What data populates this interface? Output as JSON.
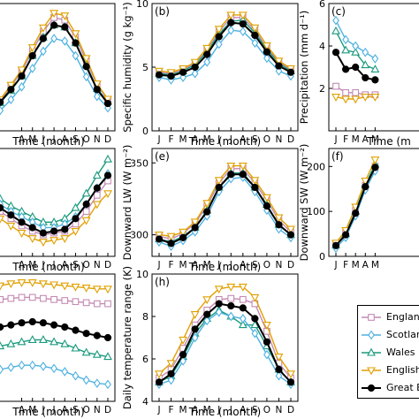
{
  "months": [
    "J",
    "F",
    "M",
    "A",
    "M",
    "J",
    "J",
    "A",
    "S",
    "O",
    "N",
    "D"
  ],
  "chart_data": [
    {
      "type": "line",
      "panel": "",
      "ylabel": "",
      "xlabel": "Time (month)",
      "ylim": [
        0,
        20
      ],
      "yticks": [],
      "visible_tick_labels": [
        "A",
        "M",
        "J",
        "J",
        "A",
        "S",
        "O",
        "N",
        "D"
      ],
      "series": [
        {
          "name": "England",
          "values": [
            4.3,
            4.8,
            7.0,
            9.3,
            12.6,
            15.6,
            17.8,
            17.4,
            14.7,
            11.0,
            7.2,
            4.9
          ]
        },
        {
          "name": "Scotland",
          "values": [
            3.0,
            3.2,
            4.9,
            6.9,
            9.8,
            12.5,
            14.5,
            14.1,
            11.8,
            8.5,
            5.4,
            3.6
          ]
        },
        {
          "name": "Wales",
          "values": [
            4.0,
            4.4,
            6.3,
            8.6,
            11.8,
            14.7,
            16.6,
            16.3,
            13.8,
            10.4,
            6.6,
            4.6
          ]
        },
        {
          "name": "English Channel",
          "values": [
            4.4,
            4.9,
            7.2,
            9.6,
            13.1,
            16.2,
            18.5,
            18.1,
            15.3,
            11.4,
            7.4,
            5.0
          ]
        },
        {
          "name": "Great Britain",
          "values": [
            4.0,
            4.5,
            6.5,
            8.6,
            11.8,
            14.5,
            16.6,
            16.3,
            13.8,
            10.1,
            6.5,
            4.3
          ]
        }
      ]
    },
    {
      "type": "line",
      "panel": "(b)",
      "ylabel": "Specific humidity (g kg⁻¹)",
      "xlabel": "Time (month)",
      "ylim": [
        0,
        10
      ],
      "yticks": [
        0,
        5,
        10
      ],
      "visible_tick_labels": [
        "J",
        "F",
        "M",
        "A",
        "M",
        "J",
        "J",
        "A",
        "S",
        "O",
        "N",
        "D"
      ],
      "series": [
        {
          "name": "England",
          "values": [
            4.6,
            4.5,
            4.8,
            5.3,
            6.3,
            7.8,
            8.9,
            8.9,
            7.9,
            6.5,
            5.4,
            4.8
          ]
        },
        {
          "name": "Scotland",
          "values": [
            4.2,
            4.0,
            4.2,
            4.5,
            5.4,
            6.8,
            7.9,
            7.8,
            6.9,
            5.7,
            4.7,
            4.3
          ]
        },
        {
          "name": "Wales",
          "values": [
            4.5,
            4.4,
            4.7,
            5.2,
            6.2,
            7.6,
            8.6,
            8.7,
            7.7,
            6.4,
            5.3,
            4.7
          ]
        },
        {
          "name": "English Channel",
          "values": [
            4.7,
            4.6,
            4.9,
            5.4,
            6.5,
            8.0,
            9.1,
            9.1,
            8.1,
            6.7,
            5.5,
            4.9
          ]
        },
        {
          "name": "Great Britain",
          "values": [
            4.4,
            4.3,
            4.6,
            5.0,
            6.0,
            7.4,
            8.5,
            8.4,
            7.5,
            6.2,
            5.1,
            4.6
          ]
        }
      ]
    },
    {
      "type": "line",
      "panel": "(c)",
      "ylabel": "Precipitation (mm d⁻¹)",
      "xlabel": "Time (m",
      "ylim": [
        0,
        6
      ],
      "yticks": [
        2,
        4,
        6
      ],
      "visible_tick_labels": [
        "J",
        "F",
        "M",
        "A",
        "M"
      ],
      "series": [
        {
          "name": "England",
          "values": [
            2.1,
            1.8,
            1.8,
            1.7,
            1.7
          ]
        },
        {
          "name": "Scotland",
          "values": [
            5.2,
            4.3,
            4.0,
            3.7,
            3.4
          ]
        },
        {
          "name": "Wales",
          "values": [
            4.7,
            3.8,
            3.7,
            3.1,
            2.9
          ]
        },
        {
          "name": "English Channel",
          "values": [
            1.6,
            1.5,
            1.5,
            1.6,
            1.6
          ]
        },
        {
          "name": "Great Britain",
          "values": [
            3.7,
            2.9,
            3.0,
            2.5,
            2.4
          ]
        }
      ]
    },
    {
      "type": "line",
      "panel": "",
      "ylabel": "",
      "xlabel": "Time (month)",
      "ylim": [
        280,
        340
      ],
      "yticks": [],
      "visible_tick_labels": [
        "A",
        "M",
        "J",
        "J",
        "A",
        "S",
        "O",
        "N",
        "D"
      ],
      "series": [
        {
          "name": "England",
          "values": [
            310,
            305,
            301,
            297,
            294,
            292,
            293,
            294,
            298,
            305,
            314,
            322
          ]
        },
        {
          "name": "Scotland",
          "values": [
            314,
            309,
            305,
            302,
            299,
            296,
            296,
            298,
            302,
            309,
            318,
            326
          ]
        },
        {
          "name": "Wales",
          "values": [
            317,
            312,
            308,
            305,
            302,
            299,
            299,
            301,
            307,
            315,
            325,
            334
          ]
        },
        {
          "name": "English Channel",
          "values": [
            306,
            301,
            297,
            293,
            290,
            288,
            289,
            290,
            294,
            300,
            309,
            315
          ]
        },
        {
          "name": "Great Britain",
          "values": [
            311,
            307,
            303,
            299,
            296,
            293,
            294,
            295,
            301,
            309,
            318,
            325
          ]
        }
      ]
    },
    {
      "type": "line",
      "panel": "(e)",
      "ylabel": "Downward LW (W m⁻²)",
      "xlabel": "Time (month)",
      "ylim": [
        285,
        360
      ],
      "yticks": [
        300,
        350
      ],
      "visible_tick_labels": [
        "J",
        "F",
        "M",
        "A",
        "M",
        "J",
        "J",
        "A",
        "S",
        "O",
        "N",
        "D"
      ],
      "series": [
        {
          "name": "England",
          "values": [
            299,
            297,
            301,
            308,
            320,
            336,
            346,
            346,
            336,
            324,
            310,
            302
          ]
        },
        {
          "name": "Scotland",
          "values": [
            295,
            292,
            296,
            302,
            313,
            330,
            339,
            340,
            330,
            317,
            304,
            298
          ]
        },
        {
          "name": "Wales",
          "values": [
            297,
            295,
            299,
            305,
            317,
            333,
            343,
            343,
            333,
            321,
            307,
            300
          ]
        },
        {
          "name": "English Channel",
          "values": [
            300,
            299,
            302,
            309,
            322,
            338,
            348,
            348,
            338,
            326,
            312,
            304
          ]
        },
        {
          "name": "Great Britain",
          "values": [
            297,
            294,
            298,
            305,
            316,
            333,
            342,
            342,
            333,
            320,
            307,
            300
          ]
        }
      ]
    },
    {
      "type": "line",
      "panel": "(f)",
      "ylabel": "Downward SW (W m⁻²)",
      "xlabel": "",
      "ylim": [
        0,
        240
      ],
      "yticks": [
        0,
        100,
        200
      ],
      "visible_tick_labels": [
        "J",
        "F",
        "M",
        "A",
        "M"
      ],
      "series": [
        {
          "name": "England",
          "values": [
            26,
            52,
            102,
            158,
            200
          ]
        },
        {
          "name": "Scotland",
          "values": [
            18,
            42,
            90,
            148,
            190
          ]
        },
        {
          "name": "Wales",
          "values": [
            25,
            50,
            100,
            160,
            205
          ]
        },
        {
          "name": "English Channel",
          "values": [
            30,
            58,
            110,
            168,
            215
          ]
        },
        {
          "name": "Great Britain",
          "values": [
            24,
            48,
            96,
            155,
            198
          ]
        }
      ]
    },
    {
      "type": "line",
      "panel": "",
      "ylabel": "",
      "xlabel": "Time (month)",
      "ylim": [
        4,
        10
      ],
      "yticks": [],
      "visible_tick_labels": [
        "A",
        "M",
        "J",
        "J",
        "A",
        "S",
        "O",
        "N",
        "D"
      ],
      "series": [
        {
          "name": "England",
          "values": [
            8.7,
            8.8,
            8.85,
            8.9,
            8.9,
            8.85,
            8.8,
            8.75,
            8.7,
            8.65,
            8.6,
            8.6
          ]
        },
        {
          "name": "Scotland",
          "values": [
            5.4,
            5.5,
            5.6,
            5.7,
            5.7,
            5.65,
            5.55,
            5.4,
            5.2,
            5.0,
            4.85,
            4.8
          ]
        },
        {
          "name": "Wales",
          "values": [
            6.5,
            6.6,
            6.7,
            6.8,
            6.9,
            6.9,
            6.8,
            6.7,
            6.5,
            6.3,
            6.2,
            6.1
          ]
        },
        {
          "name": "English Channel",
          "values": [
            9.3,
            9.45,
            9.55,
            9.6,
            9.6,
            9.55,
            9.5,
            9.45,
            9.4,
            9.35,
            9.3,
            9.3
          ]
        },
        {
          "name": "Great Britain",
          "values": [
            7.4,
            7.5,
            7.6,
            7.7,
            7.75,
            7.7,
            7.6,
            7.5,
            7.35,
            7.2,
            7.1,
            7.0
          ]
        }
      ]
    },
    {
      "type": "line",
      "panel": "(h)",
      "ylabel": "Daily temperature range (K)",
      "xlabel": "Time (month)",
      "ylim": [
        4,
        10
      ],
      "yticks": [
        4,
        6,
        8,
        10
      ],
      "visible_tick_labels": [
        "J",
        "F",
        "M",
        "A",
        "M",
        "J",
        "J",
        "A",
        "S",
        "O",
        "N",
        "D"
      ],
      "series": [
        {
          "name": "England",
          "values": [
            5.1,
            5.5,
            6.5,
            7.6,
            8.3,
            8.8,
            8.85,
            8.8,
            8.6,
            7.3,
            5.8,
            5.1
          ]
        },
        {
          "name": "Scotland",
          "values": [
            4.8,
            5.0,
            5.9,
            7.0,
            7.8,
            8.2,
            8.0,
            7.9,
            7.2,
            6.2,
            5.2,
            4.8
          ]
        },
        {
          "name": "Wales",
          "values": [
            4.9,
            5.2,
            6.1,
            7.2,
            7.9,
            8.3,
            8.0,
            7.6,
            7.6,
            6.6,
            5.5,
            4.9
          ]
        },
        {
          "name": "English Channel",
          "values": [
            5.3,
            5.8,
            6.9,
            8.1,
            8.8,
            9.3,
            9.4,
            9.4,
            8.9,
            7.6,
            6.1,
            5.3
          ]
        },
        {
          "name": "Great Britain",
          "values": [
            4.9,
            5.3,
            6.2,
            7.4,
            8.1,
            8.6,
            8.5,
            8.4,
            7.9,
            6.8,
            5.5,
            4.9
          ]
        }
      ]
    }
  ],
  "legend": {
    "items": [
      {
        "label": "England",
        "color": "#c48ab4",
        "marker": "square"
      },
      {
        "label": "Scotland",
        "color": "#4db1e0",
        "marker": "diamond"
      },
      {
        "label": "Wales",
        "color": "#1a9a7e",
        "marker": "triangle-up"
      },
      {
        "label": "English Channel",
        "color": "#e0a000",
        "marker": "triangle-down"
      },
      {
        "label": "Great Britain",
        "color": "#000000",
        "marker": "circle"
      }
    ]
  }
}
